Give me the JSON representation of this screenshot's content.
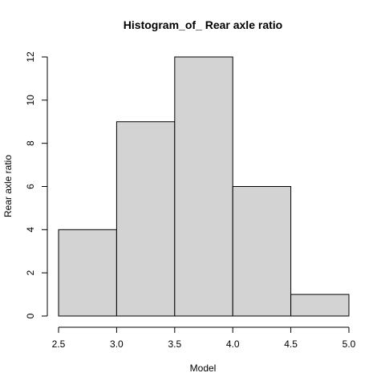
{
  "chart_data": {
    "type": "bar",
    "title": "Histogram_of_ Rear axle ratio",
    "xlabel": "Model",
    "ylabel": "Rear axle ratio",
    "bins": [
      {
        "from": 2.5,
        "to": 3.0,
        "count": 4
      },
      {
        "from": 3.0,
        "to": 3.5,
        "count": 9
      },
      {
        "from": 3.5,
        "to": 4.0,
        "count": 12
      },
      {
        "from": 4.0,
        "to": 4.5,
        "count": 6
      },
      {
        "from": 4.5,
        "to": 5.0,
        "count": 1
      }
    ],
    "xlim": [
      2.5,
      5.0
    ],
    "ylim": [
      0,
      12
    ],
    "x_ticks": [
      "2.5",
      "3.0",
      "3.5",
      "4.0",
      "4.5",
      "5.0"
    ],
    "y_ticks": [
      "0",
      "2",
      "4",
      "6",
      "8",
      "10",
      "12"
    ],
    "bar_fill": "#d3d3d3",
    "bar_stroke": "#000000",
    "grid": false,
    "legend": "none"
  }
}
